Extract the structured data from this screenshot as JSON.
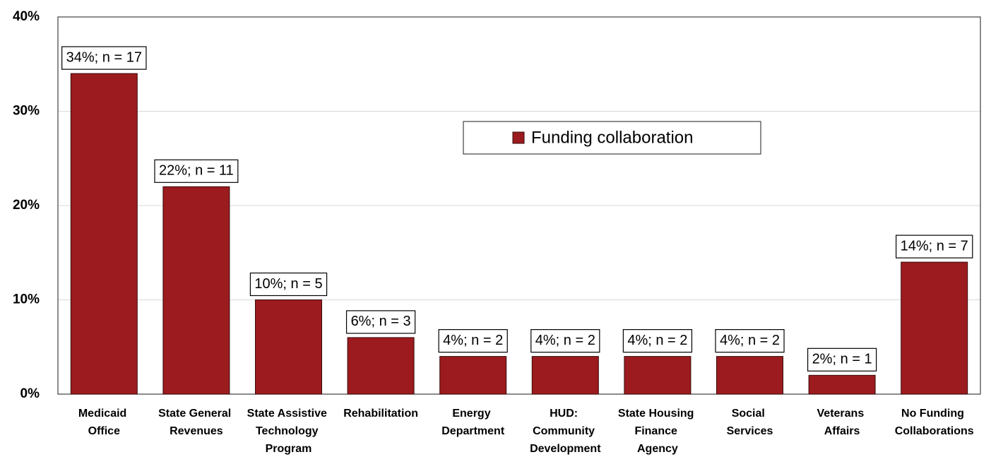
{
  "chart_data": {
    "type": "bar",
    "categories": [
      "Medicaid\nOffice",
      "State General\nRevenues",
      "State Assistive\nTechnology\nProgram",
      "Rehabilitation",
      "Energy\nDepartment",
      "HUD:\nCommunity\nDevelopment",
      "State Housing\nFinance\nAgency",
      "Social\nServices",
      "Veterans\nAffairs",
      "No Funding\nCollaborations"
    ],
    "series": [
      {
        "name": "Funding collaboration",
        "color": "#9b1b1f",
        "values": [
          34,
          22,
          10,
          6,
          4,
          4,
          4,
          4,
          2,
          14
        ],
        "value_labels": [
          "34%; n = 17",
          "22%; n = 11",
          "10%; n = 5",
          "6%; n = 3",
          "4%; n = 2",
          "4%; n = 2",
          "4%; n = 2",
          "4%; n = 2",
          "2%; n = 1",
          "14%; n = 7"
        ]
      }
    ],
    "ylim": [
      0,
      40
    ],
    "yticks": [
      {
        "value": 0,
        "label": "0%"
      },
      {
        "value": 10,
        "label": "10%"
      },
      {
        "value": 20,
        "label": "20%"
      },
      {
        "value": 30,
        "label": "30%"
      },
      {
        "value": 40,
        "label": "40%"
      }
    ],
    "grid": true,
    "legend": "center"
  }
}
